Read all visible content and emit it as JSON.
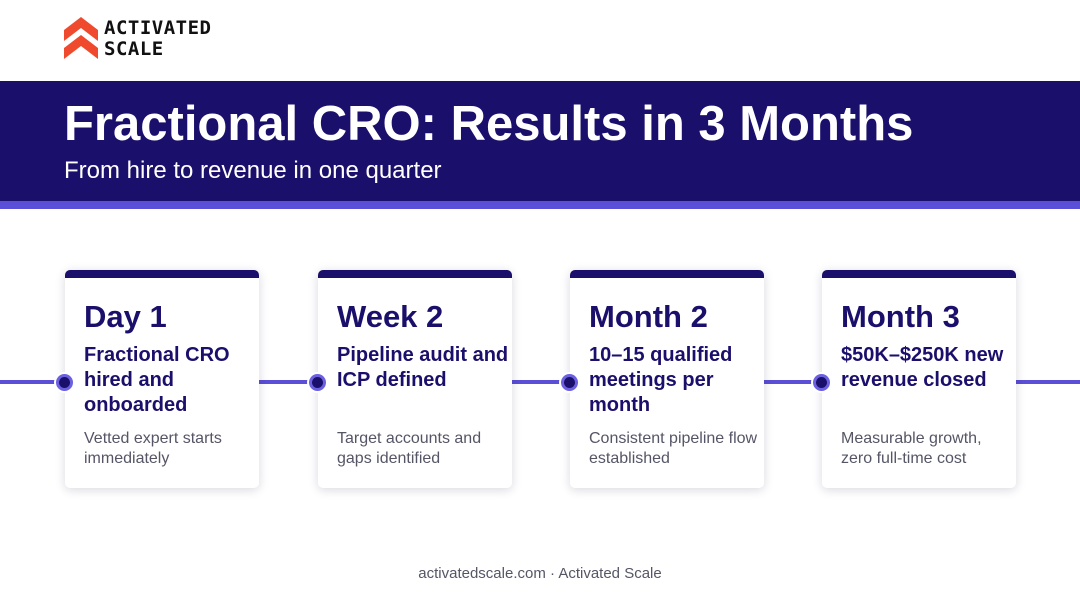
{
  "logo": {
    "line1": "ACTIVATED",
    "line2": "SCALE",
    "color": "#f04a2e"
  },
  "header": {
    "title": "Fractional CRO: Results in 3 Months",
    "subtitle": "From hire to revenue in one quarter"
  },
  "milestones": [
    {
      "heading": "Day 1",
      "outcome": "Fractional CRO hired and onboarded",
      "description": "Vetted expert starts immediately"
    },
    {
      "heading": "Week 2",
      "outcome": "Pipeline audit and ICP defined",
      "description": "Target accounts and gaps identified"
    },
    {
      "heading": "Month 2",
      "outcome": "10–15 qualified meetings per month",
      "description": "Consistent pipeline flow established"
    },
    {
      "heading": "Month 3",
      "outcome": "$50K–$250K new revenue closed",
      "description": "Measurable growth, zero full-time cost"
    }
  ],
  "footer": {
    "text": "activatedscale.com · Activated Scale"
  },
  "colors": {
    "primary": "#1a0f6b",
    "accent": "#5a4fd6",
    "brand": "#f04a2e"
  }
}
